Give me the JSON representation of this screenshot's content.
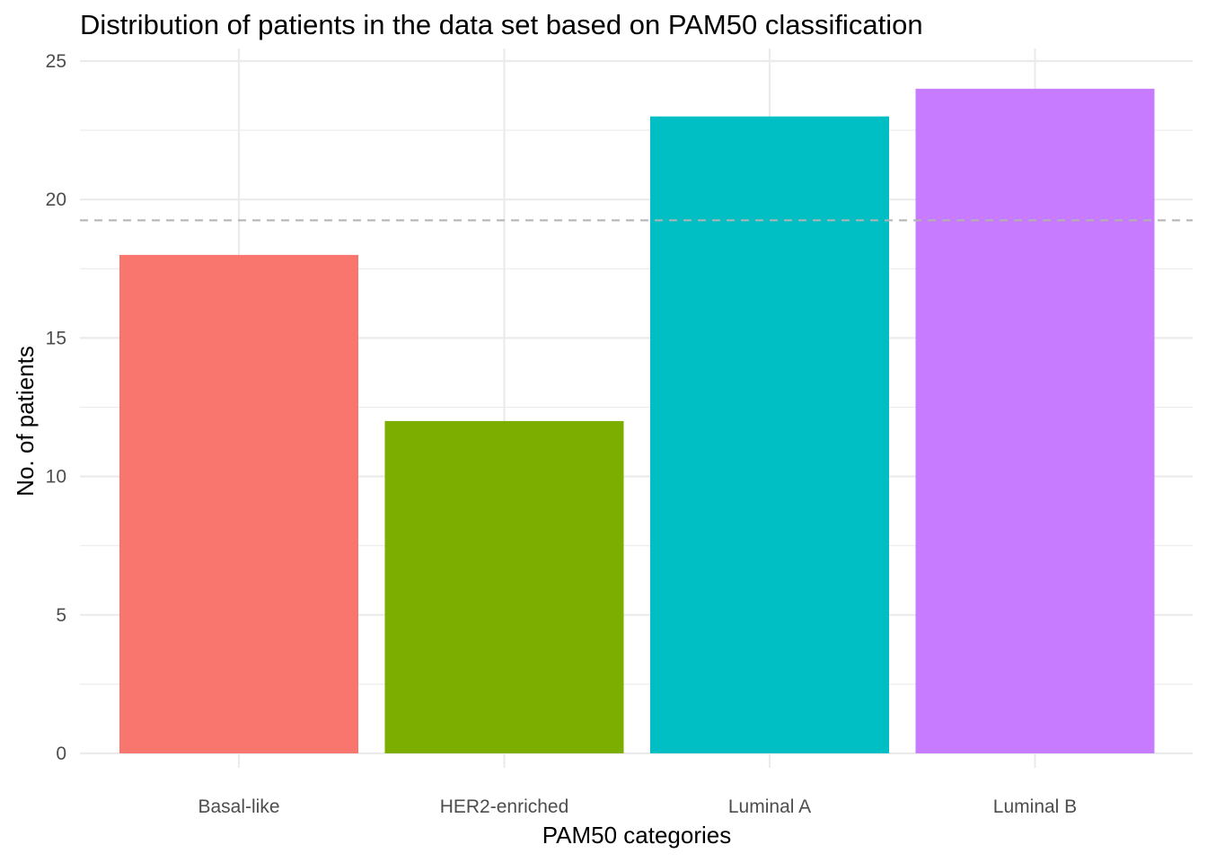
{
  "chart_data": {
    "type": "bar",
    "title": "Distribution of patients in the data set based on PAM50 classification",
    "xlabel": "PAM50 categories",
    "ylabel": "No. of patients",
    "categories": [
      "Basal-like",
      "HER2-enriched",
      "Luminal A",
      "Luminal B"
    ],
    "values": [
      18,
      12,
      23,
      24
    ],
    "colors": [
      "#F8766D",
      "#7CAE00",
      "#00BFC4",
      "#C77CFF"
    ],
    "ylim": [
      0,
      25
    ],
    "yticks": [
      "0",
      "5",
      "10",
      "15",
      "20",
      "25"
    ],
    "reference_line": {
      "value": 19.25,
      "style": "dashed",
      "color": "#b3b3b3"
    },
    "grid": true,
    "legend": "none"
  }
}
